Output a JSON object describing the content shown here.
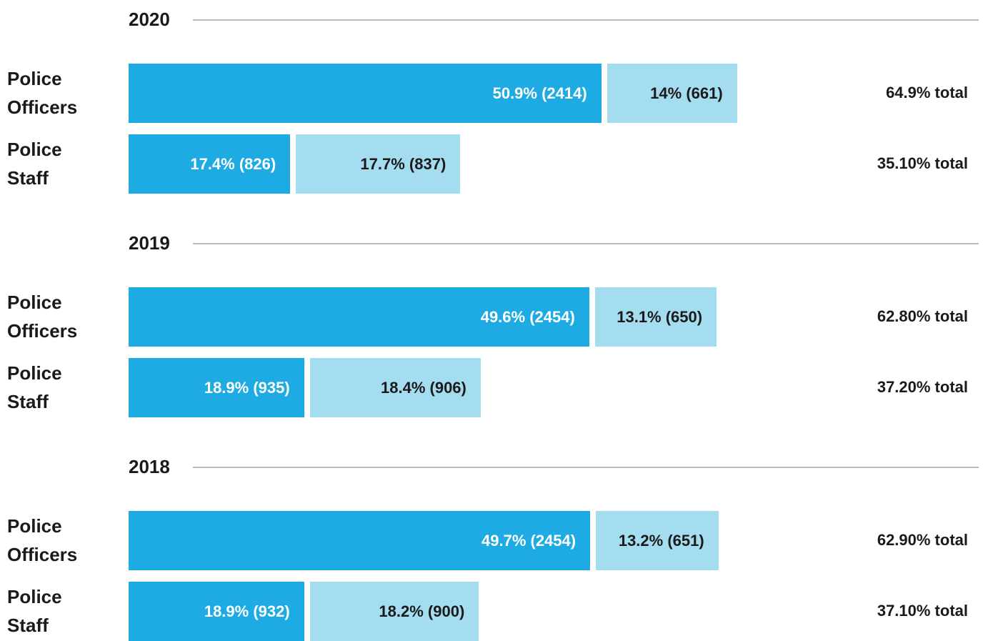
{
  "chart_data": [
    {
      "type": "stacked-bar",
      "title": "2020",
      "categories": [
        "Police Officers",
        "Police Staff"
      ],
      "series": [
        {
          "color": "#1eabe3",
          "values": [
            50.9,
            17.4
          ],
          "value_labels": [
            "50.9% (2414)",
            "17.4% (826)"
          ]
        },
        {
          "color": "#a4dcf0",
          "values": [
            14,
            17.7
          ],
          "value_labels": [
            "14% (661)",
            "17.7% (837)"
          ]
        }
      ],
      "total_labels": [
        "64.9% total",
        "35.10% total"
      ]
    },
    {
      "type": "stacked-bar",
      "title": "2019",
      "categories": [
        "Police Officers",
        "Police Staff"
      ],
      "series": [
        {
          "color": "#1eabe3",
          "values": [
            49.6,
            18.9
          ],
          "value_labels": [
            "49.6% (2454)",
            "18.9% (935)"
          ]
        },
        {
          "color": "#a4dcf0",
          "values": [
            13.1,
            18.4
          ],
          "value_labels": [
            "13.1% (650)",
            "18.4% (906)"
          ]
        }
      ],
      "total_labels": [
        "62.80% total",
        "37.20% total"
      ]
    },
    {
      "type": "stacked-bar",
      "title": "2018",
      "categories": [
        "Police Officers",
        "Police Staff"
      ],
      "series": [
        {
          "color": "#1eabe3",
          "values": [
            49.7,
            18.9
          ],
          "value_labels": [
            "49.7% (2454)",
            "18.9% (932)"
          ]
        },
        {
          "color": "#a4dcf0",
          "values": [
            13.2,
            18.2
          ],
          "value_labels": [
            "13.2% (651)",
            "18.2% (900)"
          ]
        }
      ],
      "total_labels": [
        "62.90% total",
        "37.10% total"
      ]
    }
  ]
}
